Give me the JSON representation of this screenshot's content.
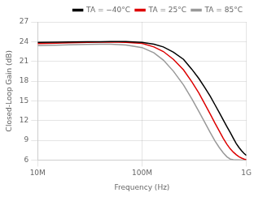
{
  "chart_data": {
    "type": "line",
    "xlabel": "Frequency (Hz)",
    "ylabel": "Closed-Loop Gain (dB)",
    "log": "x",
    "grid": true,
    "legend": "upper right",
    "xlim": [
      10000000.0,
      1000000000.0
    ],
    "xticks": [
      {
        "value": 10000000.0,
        "label": "10M"
      },
      {
        "value": 100000000.0,
        "label": "100M"
      },
      {
        "value": 1000000000.0,
        "label": "1G"
      }
    ],
    "ylim": [
      6,
      27
    ],
    "yticks": [
      6,
      9,
      12,
      15,
      18,
      21,
      24,
      27
    ],
    "x": [
      10000000.0,
      15000000.0,
      20000000.0,
      30000000.0,
      40000000.0,
      50000000.0,
      70000000.0,
      100000000.0,
      130000000.0,
      160000000.0,
      200000000.0,
      250000000.0,
      300000000.0,
      350000000.0,
      400000000.0,
      450000000.0,
      500000000.0,
      550000000.0,
      600000000.0,
      650000000.0,
      700000000.0,
      750000000.0,
      800000000.0,
      850000000.0,
      900000000.0,
      950000000.0,
      1000000000.0
    ],
    "series": [
      {
        "name": "TA = −40°C",
        "color": "#000000",
        "values": [
          23.9,
          23.93,
          23.95,
          23.97,
          23.99,
          24.0,
          24.0,
          23.9,
          23.6,
          23.2,
          22.4,
          21.3,
          19.8,
          18.4,
          17.0,
          15.7,
          14.4,
          13.2,
          12.1,
          11.1,
          10.2,
          9.3,
          8.5,
          7.9,
          7.4,
          7.0,
          6.7
        ]
      },
      {
        "name": "TA = 25°C",
        "color": "#dd0000",
        "values": [
          23.7,
          23.77,
          23.82,
          23.88,
          23.92,
          23.95,
          23.9,
          23.72,
          23.2,
          22.5,
          21.3,
          19.7,
          17.9,
          16.2,
          14.5,
          13.0,
          11.6,
          10.4,
          9.3,
          8.4,
          7.7,
          7.2,
          6.8,
          6.5,
          6.3,
          6.15,
          6.05
        ]
      },
      {
        "name": "TA = 85°C",
        "color": "#999999",
        "values": [
          23.4,
          23.47,
          23.52,
          23.58,
          23.62,
          23.62,
          23.5,
          23.1,
          22.3,
          21.2,
          19.5,
          17.4,
          15.3,
          13.4,
          11.7,
          10.2,
          8.9,
          7.9,
          7.1,
          6.5,
          6.15,
          6.05,
          6.02,
          6.01,
          6.0,
          6.0,
          6.0
        ]
      }
    ]
  }
}
